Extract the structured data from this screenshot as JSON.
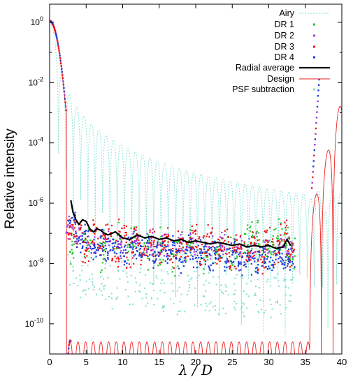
{
  "chart_data": {
    "type": "line",
    "title": "",
    "xlabel": "λ / D",
    "ylabel": "Relative  intensity",
    "xlim": [
      0,
      40
    ],
    "ylim_log10": [
      -11,
      0.6
    ],
    "yscale": "log",
    "grid": false,
    "legend_position": "top-right",
    "x_ticks": [
      {
        "value": 0,
        "label": "0"
      },
      {
        "value": 5,
        "label": "5"
      },
      {
        "value": 10,
        "label": "10"
      },
      {
        "value": 15,
        "label": "15"
      },
      {
        "value": 20,
        "label": "20"
      },
      {
        "value": 25,
        "label": "25"
      },
      {
        "value": 30,
        "label": "30"
      },
      {
        "value": 35,
        "label": "35"
      },
      {
        "value": 40,
        "label": "40"
      }
    ],
    "y_ticks": [
      {
        "exp": 0,
        "base": "10",
        "sup": "0"
      },
      {
        "exp": -2,
        "base": "10",
        "sup": "-2"
      },
      {
        "exp": -4,
        "base": "10",
        "sup": "-4"
      },
      {
        "exp": -6,
        "base": "10",
        "sup": "-6"
      },
      {
        "exp": -8,
        "base": "10",
        "sup": "-8"
      },
      {
        "exp": -10,
        "base": "10",
        "sup": "-10"
      }
    ],
    "series": [
      {
        "name": "Airy",
        "color": "#7fe0d0",
        "style": "dashed-line",
        "model": "airy-pattern",
        "x_range": [
          0,
          40
        ]
      },
      {
        "name": "DR 1",
        "color": "#22cc22",
        "style": "points",
        "x": [
          3,
          5,
          7,
          9,
          11,
          13,
          15,
          17,
          19,
          21,
          23,
          25,
          27,
          28,
          29,
          30,
          31,
          32,
          33
        ],
        "log10_y": [
          -7.4,
          -7.3,
          -7.6,
          -7.3,
          -7.4,
          -7.5,
          -7.5,
          -7.7,
          -7.5,
          -7.8,
          -7.6,
          -7.6,
          -7.2,
          -7.0,
          -7.6,
          -7.5,
          -7.1,
          -7.4,
          -7.6
        ]
      },
      {
        "name": "DR 2",
        "color": "#a23cd8",
        "style": "points",
        "x": [
          3,
          4,
          6,
          8,
          10,
          12,
          14,
          16,
          18,
          20,
          22,
          24,
          26,
          28,
          30,
          32,
          33
        ],
        "log10_y": [
          -6.8,
          -7.2,
          -7.3,
          -7.2,
          -7.4,
          -7.3,
          -7.3,
          -7.4,
          -7.3,
          -7.3,
          -7.5,
          -7.4,
          -7.5,
          -7.4,
          -7.5,
          -7.5,
          -7.5
        ]
      },
      {
        "name": "DR 3",
        "color": "#ee1111",
        "style": "points",
        "x": [
          3,
          4,
          5,
          6,
          7,
          8,
          9,
          10,
          11,
          12,
          13,
          14,
          15,
          16,
          17,
          18,
          19,
          20,
          21,
          22,
          23,
          24,
          25,
          26,
          27,
          28,
          29,
          30,
          31,
          32,
          33
        ],
        "log10_y": [
          -6.9,
          -7.0,
          -7.6,
          -7.0,
          -7.5,
          -7.1,
          -7.7,
          -7.0,
          -7.7,
          -7.2,
          -7.6,
          -7.3,
          -7.6,
          -7.3,
          -7.7,
          -7.4,
          -7.4,
          -7.0,
          -7.6,
          -7.1,
          -7.7,
          -7.3,
          -7.8,
          -7.4,
          -7.7,
          -7.4,
          -7.9,
          -7.2,
          -7.6,
          -7.1,
          -7.7
        ]
      },
      {
        "name": "DR 4",
        "color": "#1a3ad8",
        "style": "points",
        "x": [
          3,
          4,
          5,
          6,
          7,
          8,
          9,
          10,
          11,
          12,
          13,
          14,
          15,
          16,
          17,
          18,
          19,
          20,
          21,
          22,
          23,
          24,
          25,
          26,
          27,
          28,
          29,
          30,
          31,
          32,
          33
        ],
        "log10_y": [
          -6.6,
          -7.3,
          -7.1,
          -7.5,
          -7.3,
          -7.6,
          -7.4,
          -7.7,
          -7.3,
          -7.6,
          -7.4,
          -7.8,
          -7.4,
          -7.7,
          -7.5,
          -7.9,
          -7.5,
          -7.8,
          -7.6,
          -7.9,
          -7.6,
          -7.9,
          -7.6,
          -8.0,
          -7.7,
          -8.0,
          -7.7,
          -8.0,
          -7.8,
          -8.0,
          -7.8
        ]
      },
      {
        "name": "Radial average",
        "color": "#000000",
        "style": "thick-line",
        "x": [
          2.9,
          3.2,
          3.6,
          4.0,
          4.5,
          5.0,
          5.5,
          6.0,
          6.5,
          7.0,
          7.5,
          8.0,
          8.5,
          9.0,
          9.5,
          10.0,
          11.0,
          12.0,
          13.0,
          14.0,
          15.0,
          16.0,
          17.0,
          18.0,
          19.0,
          20.0,
          21.0,
          22.0,
          23.0,
          24.0,
          25.0,
          26.0,
          27.0,
          28.0,
          29.0,
          30.0,
          31.0,
          32.0,
          32.5,
          33.0
        ],
        "log10_y": [
          -5.9,
          -6.3,
          -6.55,
          -6.7,
          -6.55,
          -6.6,
          -6.85,
          -6.95,
          -6.85,
          -6.9,
          -7.0,
          -7.05,
          -7.0,
          -6.95,
          -7.05,
          -7.15,
          -7.2,
          -7.05,
          -7.15,
          -7.1,
          -7.2,
          -7.15,
          -7.25,
          -7.2,
          -7.3,
          -7.25,
          -7.3,
          -7.35,
          -7.3,
          -7.35,
          -7.4,
          -7.35,
          -7.45,
          -7.4,
          -7.45,
          -7.4,
          -7.5,
          -7.45,
          -7.2,
          -7.4
        ]
      },
      {
        "name": "Design",
        "color": "#ee2020",
        "style": "thin-line",
        "model": "apodized-design",
        "x_range": [
          0,
          40
        ]
      },
      {
        "name": "PSF subtraction",
        "color": "#7fe0d0",
        "style": "points",
        "x": [
          3,
          4,
          5,
          6,
          7,
          8,
          9,
          10,
          11,
          12,
          13,
          14,
          15,
          16,
          17,
          18,
          19,
          20,
          21,
          22,
          23,
          24,
          25,
          26,
          27,
          28,
          29,
          30,
          31,
          32,
          33
        ],
        "log10_y": [
          -8.3,
          -8.5,
          -8.6,
          -8.4,
          -8.7,
          -8.6,
          -8.8,
          -8.5,
          -8.7,
          -8.8,
          -8.9,
          -8.7,
          -8.8,
          -8.9,
          -8.8,
          -9.0,
          -8.9,
          -8.8,
          -9.0,
          -8.9,
          -9.0,
          -9.1,
          -8.9,
          -9.0,
          -9.1,
          -8.9,
          -9.0,
          -9.1,
          -9.0,
          -9.0,
          -8.9
        ]
      }
    ]
  }
}
